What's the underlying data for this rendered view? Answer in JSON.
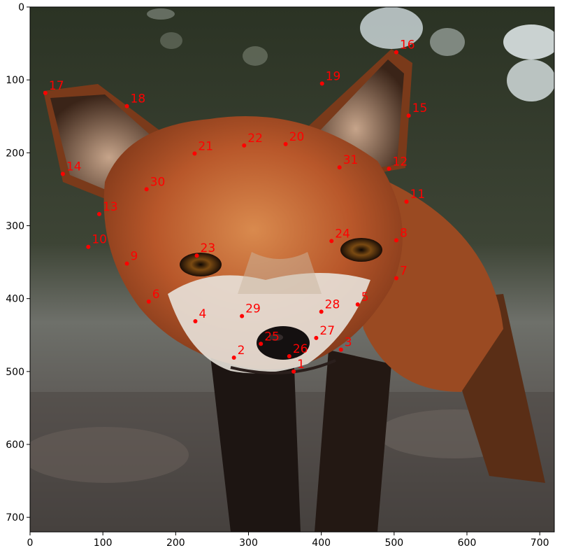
{
  "colors": {
    "keypoint": "#ff0000",
    "axis": "#000000",
    "background": "#ffffff"
  },
  "chart_data": {
    "type": "scatter",
    "xlim": [
      0,
      720
    ],
    "ylim": [
      720,
      0
    ],
    "x_ticks": [
      0,
      100,
      200,
      300,
      400,
      500,
      600,
      700
    ],
    "y_ticks": [
      0,
      100,
      200,
      300,
      400,
      500,
      600,
      700
    ],
    "grid": false,
    "points": [
      {
        "label": "1",
        "x": 362,
        "y": 500
      },
      {
        "label": "2",
        "x": 280,
        "y": 481
      },
      {
        "label": "3",
        "x": 427,
        "y": 470
      },
      {
        "label": "4",
        "x": 227,
        "y": 431
      },
      {
        "label": "5",
        "x": 450,
        "y": 408
      },
      {
        "label": "6",
        "x": 163,
        "y": 404
      },
      {
        "label": "7",
        "x": 503,
        "y": 372
      },
      {
        "label": "8",
        "x": 503,
        "y": 320
      },
      {
        "label": "9",
        "x": 133,
        "y": 352
      },
      {
        "label": "10",
        "x": 80,
        "y": 329
      },
      {
        "label": "11",
        "x": 517,
        "y": 267
      },
      {
        "label": "12",
        "x": 493,
        "y": 222
      },
      {
        "label": "13",
        "x": 95,
        "y": 284
      },
      {
        "label": "14",
        "x": 45,
        "y": 229
      },
      {
        "label": "15",
        "x": 520,
        "y": 149
      },
      {
        "label": "16",
        "x": 503,
        "y": 62
      },
      {
        "label": "17",
        "x": 21,
        "y": 118
      },
      {
        "label": "18",
        "x": 133,
        "y": 136
      },
      {
        "label": "19",
        "x": 401,
        "y": 105
      },
      {
        "label": "20",
        "x": 351,
        "y": 188
      },
      {
        "label": "21",
        "x": 226,
        "y": 201
      },
      {
        "label": "22",
        "x": 294,
        "y": 190
      },
      {
        "label": "23",
        "x": 229,
        "y": 341
      },
      {
        "label": "24",
        "x": 414,
        "y": 321
      },
      {
        "label": "25",
        "x": 317,
        "y": 462
      },
      {
        "label": "26",
        "x": 356,
        "y": 479
      },
      {
        "label": "27",
        "x": 393,
        "y": 454
      },
      {
        "label": "28",
        "x": 400,
        "y": 418
      },
      {
        "label": "29",
        "x": 291,
        "y": 424
      },
      {
        "label": "30",
        "x": 160,
        "y": 250
      },
      {
        "label": "31",
        "x": 425,
        "y": 220
      }
    ]
  }
}
